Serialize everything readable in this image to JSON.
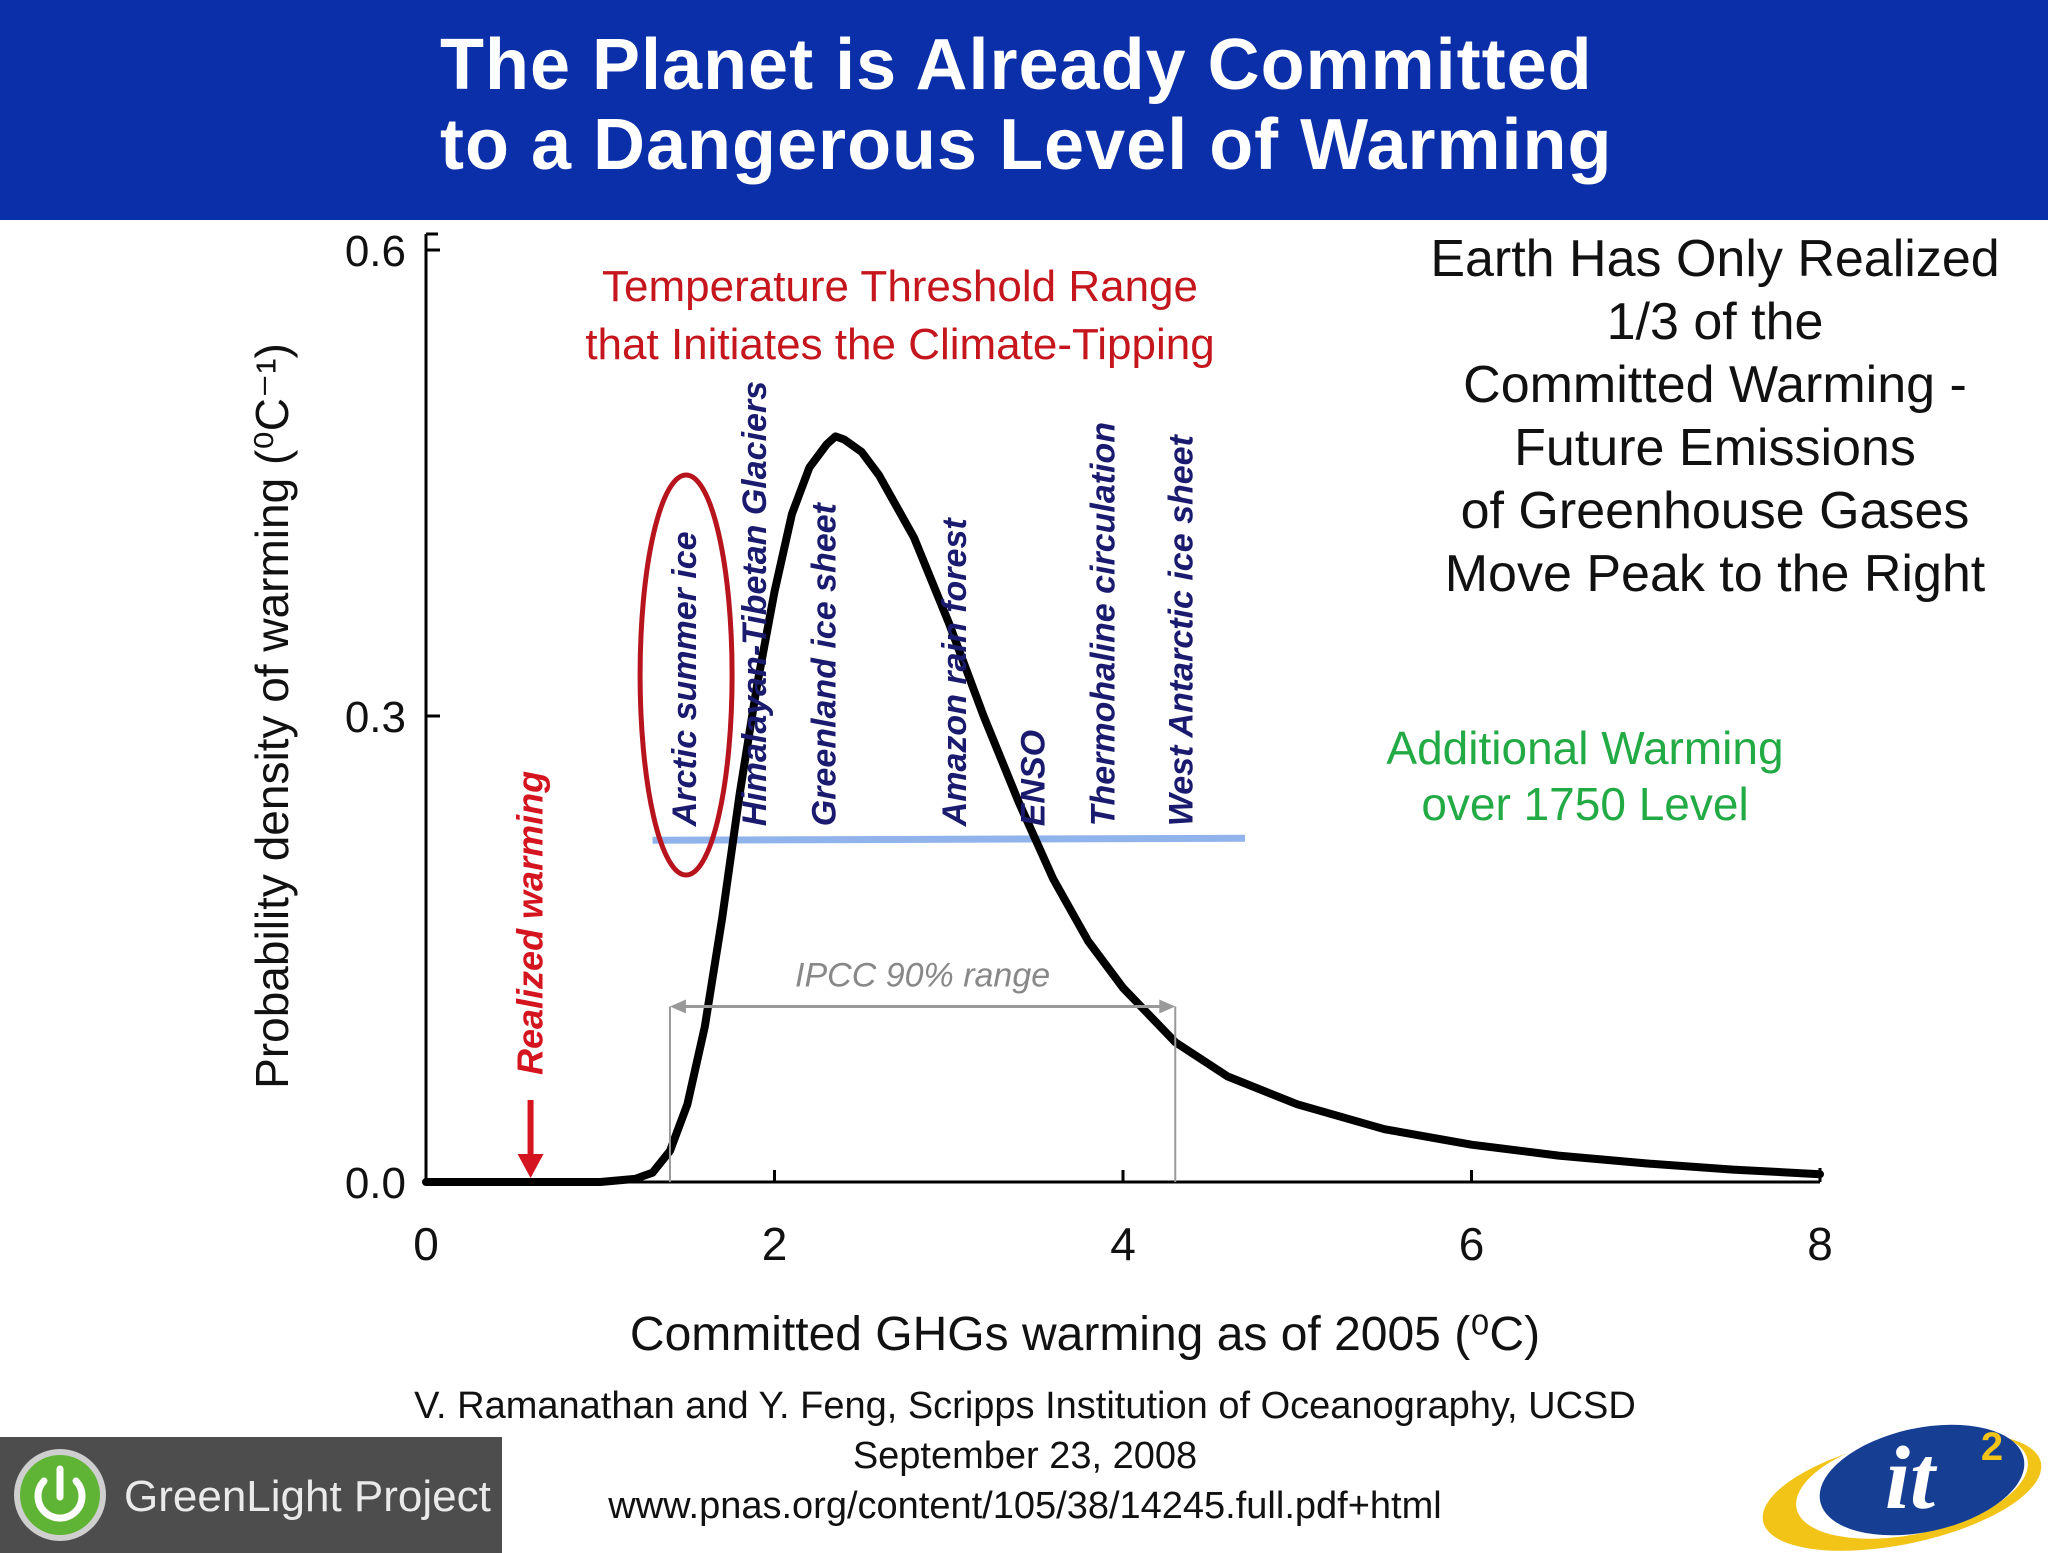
{
  "header": {
    "title_line1": "The Planet is Already Committed",
    "title_line2": "to a Dangerous Level of Warming"
  },
  "side_note": {
    "lines": [
      "Earth Has Only Realized",
      "1/3 of the",
      "Committed Warming -",
      "Future Emissions",
      "of Greenhouse Gases",
      "Move Peak to the Right"
    ]
  },
  "additional_label": {
    "line1": "Additional Warming",
    "line2": "over 1750 Level"
  },
  "threshold_title": {
    "line1": "Temperature Threshold Range",
    "line2": "that Initiates the Climate-Tipping"
  },
  "chart_data": {
    "type": "line",
    "xlabel": "Committed GHGs warming as of 2005 (⁰C)",
    "ylabel": "Probability density of warming (⁰C⁻¹)",
    "xlim": [
      0,
      8
    ],
    "ylim": [
      0,
      0.6
    ],
    "x_ticks": [
      "0",
      "2",
      "4",
      "6",
      "8"
    ],
    "y_ticks": [
      "0.0",
      "0.3",
      "0.6"
    ],
    "series": [
      {
        "x": [
          0,
          1.0,
          1.2,
          1.3,
          1.4,
          1.5,
          1.6,
          1.7,
          1.8,
          1.9,
          2.0,
          2.1,
          2.2,
          2.3,
          2.35,
          2.4,
          2.5,
          2.6,
          2.8,
          3.0,
          3.2,
          3.4,
          3.6,
          3.8,
          4.0,
          4.3,
          4.6,
          5.0,
          5.5,
          6.0,
          6.5,
          7.0,
          7.5,
          8.0
        ],
        "y": [
          0.0,
          0.0,
          0.002,
          0.006,
          0.02,
          0.05,
          0.1,
          0.17,
          0.25,
          0.32,
          0.38,
          0.43,
          0.46,
          0.475,
          0.48,
          0.478,
          0.47,
          0.455,
          0.415,
          0.36,
          0.3,
          0.245,
          0.195,
          0.155,
          0.125,
          0.09,
          0.068,
          0.05,
          0.034,
          0.024,
          0.017,
          0.012,
          0.008,
          0.005
        ]
      }
    ],
    "realized_warming": {
      "label": "Realized warming",
      "x": 0.6
    },
    "ipcc_range": {
      "label": "IPCC 90% range",
      "x_start": 1.4,
      "x_end": 4.3,
      "y": 0.113
    },
    "tipping_band": {
      "y": 0.22,
      "x_start": 1.3,
      "x_end": 4.7
    },
    "tipping_elements": [
      {
        "label": "Arctic summer ice",
        "x": 1.55
      },
      {
        "label": "Himalayan-Tibetan Glaciers",
        "x": 1.95
      },
      {
        "label": "Greenland ice sheet",
        "x": 2.35
      },
      {
        "label": "Amazon rain forest",
        "x": 3.1
      },
      {
        "label": "ENSO",
        "x": 3.55
      },
      {
        "label": "Thermohaline circulation",
        "x": 3.95
      },
      {
        "label": "West Antarctic ice sheet",
        "x": 4.4
      }
    ],
    "highlighted_element": "Arctic summer ice",
    "colors": {
      "curve": "#000000",
      "band": "#8fb3ea",
      "realized": "#d4141e",
      "ellipse": "#b8141e",
      "tipping_text": "#1a1a6e",
      "ipcc": "#999999"
    }
  },
  "credits": {
    "line1": "V. Ramanathan and Y. Feng, Scripps Institution of Oceanography, UCSD",
    "line2": "September 23, 2008",
    "line3": "www.pnas.org/content/105/38/14245.full.pdf+html"
  },
  "greenlight": {
    "label": "GreenLight Project",
    "icon": "power-icon"
  },
  "it2_logo": {
    "text": "it",
    "superscript": "2"
  }
}
